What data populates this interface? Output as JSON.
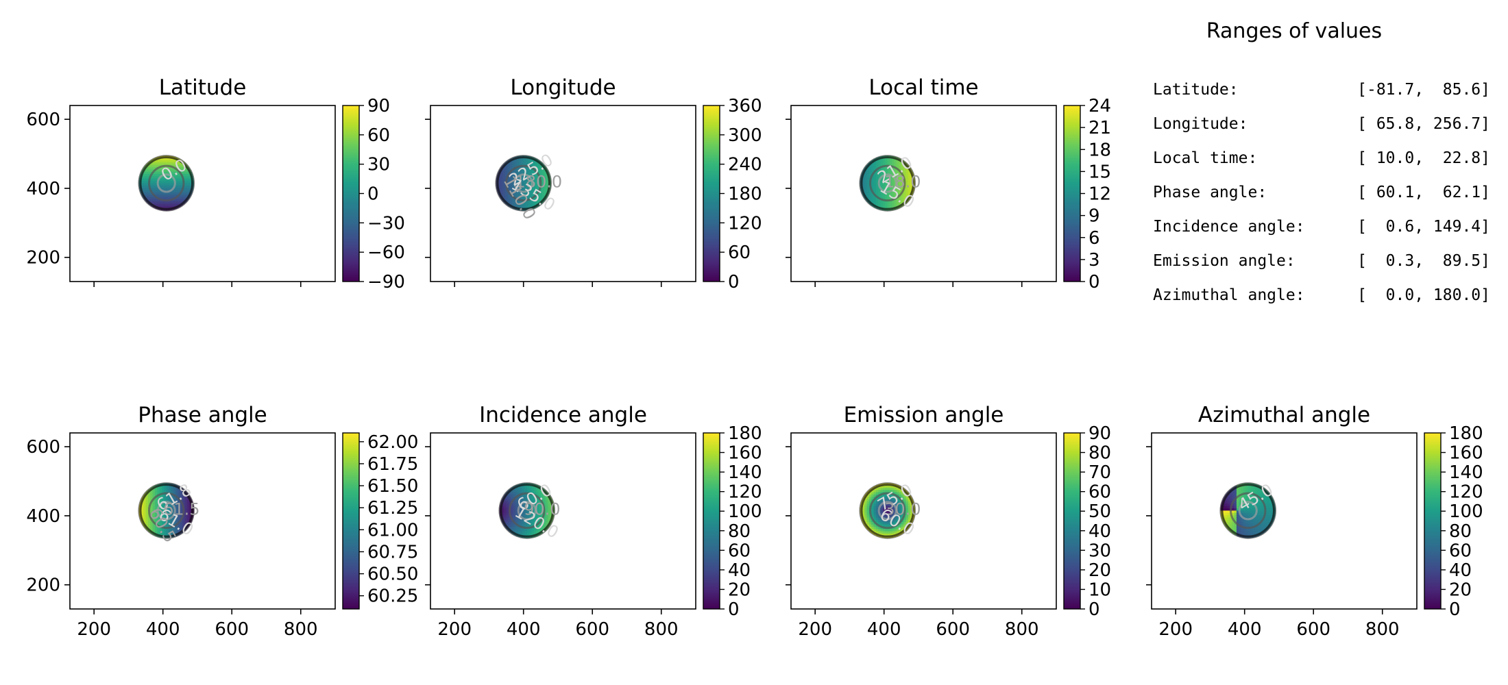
{
  "figure": {
    "ranges_title": "Ranges of values",
    "ranges": [
      {
        "label": "Latitude:",
        "value": "[-81.7,  85.6]"
      },
      {
        "label": "Longitude:",
        "value": "[ 65.8, 256.7]"
      },
      {
        "label": "Local time:",
        "value": "[ 10.0,  22.8]"
      },
      {
        "label": "Phase angle:",
        "value": "[ 60.1,  62.1]"
      },
      {
        "label": "Incidence angle:",
        "value": "[  0.6, 149.4]"
      },
      {
        "label": "Emission angle:",
        "value": "[  0.3,  89.5]"
      },
      {
        "label": "Azimuthal angle:",
        "value": "[  0.0, 180.0]"
      }
    ],
    "colormap": "viridis",
    "colormap_stops": [
      "#440154",
      "#482878",
      "#3e4a89",
      "#31688e",
      "#26828e",
      "#1f9e89",
      "#35b779",
      "#6dcd59",
      "#b4de2c",
      "#fde725"
    ],
    "contour_colors": [
      "#d9d9d9",
      "#a0a0a0",
      "#555555",
      "#111111"
    ]
  },
  "chart_data": [
    {
      "type": "heatmap",
      "title": "Latitude",
      "xlim": [
        130,
        900
      ],
      "ylim": [
        130,
        640
      ],
      "xticks": [
        200,
        400,
        600,
        800
      ],
      "yticks": [
        200,
        400,
        600
      ],
      "show_xticklabels": false,
      "show_yticklabels": true,
      "disk": {
        "cx": 410,
        "cy": 415,
        "r": 80
      },
      "colorbar": {
        "min": -90,
        "max": 90,
        "ticks": [
          -90,
          -60,
          -30,
          0,
          30,
          60,
          90
        ],
        "tick_labels": [
          "−90",
          "−60",
          "−30",
          "0",
          "30",
          "60",
          "90"
        ]
      },
      "value_range": [
        -81.7,
        85.6
      ],
      "field": "latitude",
      "contour_labels": [
        "0.0"
      ]
    },
    {
      "type": "heatmap",
      "title": "Longitude",
      "xlim": [
        130,
        900
      ],
      "ylim": [
        130,
        640
      ],
      "xticks": [
        200,
        400,
        600,
        800
      ],
      "yticks": [
        200,
        400,
        600
      ],
      "show_xticklabels": false,
      "show_yticklabels": false,
      "disk": {
        "cx": 400,
        "cy": 415,
        "r": 80
      },
      "colorbar": {
        "min": 0,
        "max": 360,
        "ticks": [
          0,
          60,
          120,
          180,
          240,
          300,
          360
        ],
        "tick_labels": [
          "0",
          "60",
          "120",
          "180",
          "240",
          "300",
          "360"
        ]
      },
      "value_range": [
        65.8,
        256.7
      ],
      "field": "longitude",
      "contour_labels": [
        "225.0",
        "180.0",
        "135.0",
        "110.0"
      ]
    },
    {
      "type": "heatmap",
      "title": "Local time",
      "xlim": [
        130,
        900
      ],
      "ylim": [
        130,
        640
      ],
      "xticks": [
        200,
        400,
        600,
        800
      ],
      "yticks": [
        200,
        400,
        600
      ],
      "show_xticklabels": false,
      "show_yticklabels": false,
      "disk": {
        "cx": 410,
        "cy": 415,
        "r": 80
      },
      "colorbar": {
        "min": 0,
        "max": 24,
        "ticks": [
          0,
          3,
          6,
          9,
          12,
          15,
          18,
          21,
          24
        ],
        "tick_labels": [
          "0",
          "3",
          "6",
          "9",
          "12",
          "15",
          "18",
          "21",
          "24"
        ]
      },
      "value_range": [
        10.0,
        22.8
      ],
      "field": "localtime",
      "contour_labels": [
        "21.0",
        "18.0",
        "15.0"
      ]
    },
    {
      "type": "heatmap",
      "title": "Phase angle",
      "xlim": [
        130,
        900
      ],
      "ylim": [
        130,
        640
      ],
      "xticks": [
        200,
        400,
        600,
        800
      ],
      "yticks": [
        200,
        400,
        600
      ],
      "show_xticklabels": true,
      "show_yticklabels": true,
      "xtick_labels": [
        "200",
        "400",
        "600",
        "800"
      ],
      "disk": {
        "cx": 410,
        "cy": 415,
        "r": 80
      },
      "colorbar": {
        "min": 60.1,
        "max": 62.1,
        "ticks": [
          60.25,
          60.5,
          60.75,
          61.0,
          61.25,
          61.5,
          61.75,
          62.0
        ],
        "tick_labels": [
          "60.25",
          "60.50",
          "60.75",
          "61.00",
          "61.25",
          "61.50",
          "61.75",
          "62.00"
        ]
      },
      "value_range": [
        60.1,
        62.1
      ],
      "field": "phase",
      "contour_labels": [
        "61.8",
        "61.5",
        "61.0",
        "60.5"
      ]
    },
    {
      "type": "heatmap",
      "title": "Incidence angle",
      "xlim": [
        130,
        900
      ],
      "ylim": [
        130,
        640
      ],
      "xticks": [
        200,
        400,
        600,
        800
      ],
      "yticks": [
        200,
        400,
        600
      ],
      "show_xticklabels": true,
      "show_yticklabels": false,
      "xtick_labels": [
        "200",
        "400",
        "600",
        "800"
      ],
      "disk": {
        "cx": 410,
        "cy": 415,
        "r": 80
      },
      "colorbar": {
        "min": 0,
        "max": 180,
        "ticks": [
          0,
          20,
          40,
          60,
          80,
          100,
          120,
          140,
          160,
          180
        ],
        "tick_labels": [
          "0",
          "20",
          "40",
          "60",
          "80",
          "100",
          "120",
          "140",
          "160",
          "180"
        ]
      },
      "value_range": [
        0.6,
        149.4
      ],
      "field": "incidence",
      "contour_labels": [
        "60.0",
        "90.0",
        "120.0"
      ]
    },
    {
      "type": "heatmap",
      "title": "Emission angle",
      "xlim": [
        130,
        900
      ],
      "ylim": [
        130,
        640
      ],
      "xticks": [
        200,
        400,
        600,
        800
      ],
      "yticks": [
        200,
        400,
        600
      ],
      "show_xticklabels": true,
      "show_yticklabels": false,
      "xtick_labels": [
        "200",
        "400",
        "600",
        "800"
      ],
      "disk": {
        "cx": 410,
        "cy": 415,
        "r": 80
      },
      "colorbar": {
        "min": 0,
        "max": 90,
        "ticks": [
          0,
          10,
          20,
          30,
          40,
          50,
          60,
          70,
          80,
          90
        ],
        "tick_labels": [
          "0",
          "10",
          "20",
          "30",
          "40",
          "50",
          "60",
          "70",
          "80",
          "90"
        ]
      },
      "value_range": [
        0.3,
        89.5
      ],
      "field": "emission",
      "contour_labels": [
        "75.0",
        "30.0",
        "60.0"
      ]
    },
    {
      "type": "heatmap",
      "title": "Azimuthal angle",
      "xlim": [
        130,
        900
      ],
      "ylim": [
        130,
        640
      ],
      "xticks": [
        200,
        400,
        600,
        800
      ],
      "yticks": [
        200,
        400,
        600
      ],
      "show_xticklabels": true,
      "show_yticklabels": false,
      "xtick_labels": [
        "200",
        "400",
        "600",
        "800"
      ],
      "disk": {
        "cx": 410,
        "cy": 415,
        "r": 80
      },
      "colorbar": {
        "min": 0,
        "max": 180,
        "ticks": [
          0,
          20,
          40,
          60,
          80,
          100,
          120,
          140,
          160,
          180
        ],
        "tick_labels": [
          "0",
          "20",
          "40",
          "60",
          "80",
          "100",
          "120",
          "140",
          "160",
          "180"
        ]
      },
      "value_range": [
        0.0,
        180.0
      ],
      "field": "azimuth",
      "contour_labels": [
        "45.0"
      ]
    }
  ]
}
